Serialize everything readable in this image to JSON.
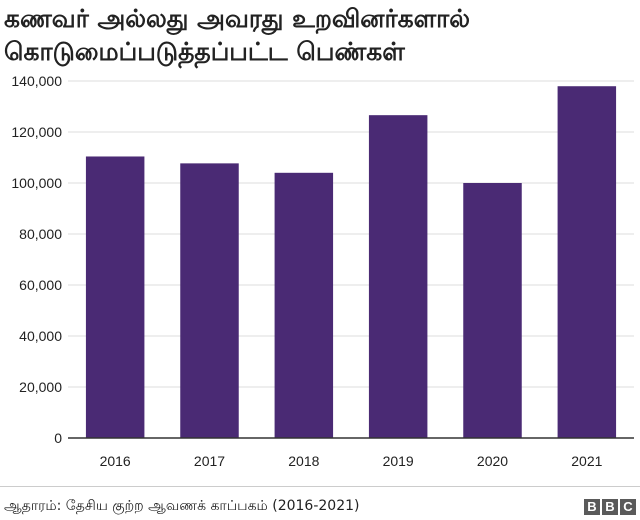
{
  "title": "கணவர் அல்லது அவரது உறவினர்களால் கொடுமைப்படுத்தப்பட்ட பெண்கள்",
  "source": "ஆதாரம்: தேசிய குற்ற ஆவணக் காப்பகம் (2016-2021)",
  "logo": [
    "B",
    "B",
    "C"
  ],
  "colors": {
    "bar": "#4a2a74",
    "grid": "#dcdcdc",
    "axis": "#333333"
  },
  "chart_data": {
    "type": "bar",
    "title": "கணவர் அல்லது அவரது உறவினர்களால் கொடுமைப்படுத்தப்பட்ட பெண்கள்",
    "xlabel": "",
    "ylabel": "",
    "categories": [
      "2016",
      "2017",
      "2018",
      "2019",
      "2020",
      "2021"
    ],
    "values": [
      110400,
      107700,
      104000,
      126600,
      100000,
      137950
    ],
    "ylim": [
      0,
      140000
    ],
    "yticks": [
      0,
      20000,
      40000,
      60000,
      80000,
      100000,
      120000,
      140000
    ],
    "ytick_labels": [
      "0",
      "20,000",
      "40,000",
      "60,000",
      "80,000",
      "100,000",
      "120,000",
      "140,000"
    ],
    "grid": true,
    "legend": "none"
  }
}
